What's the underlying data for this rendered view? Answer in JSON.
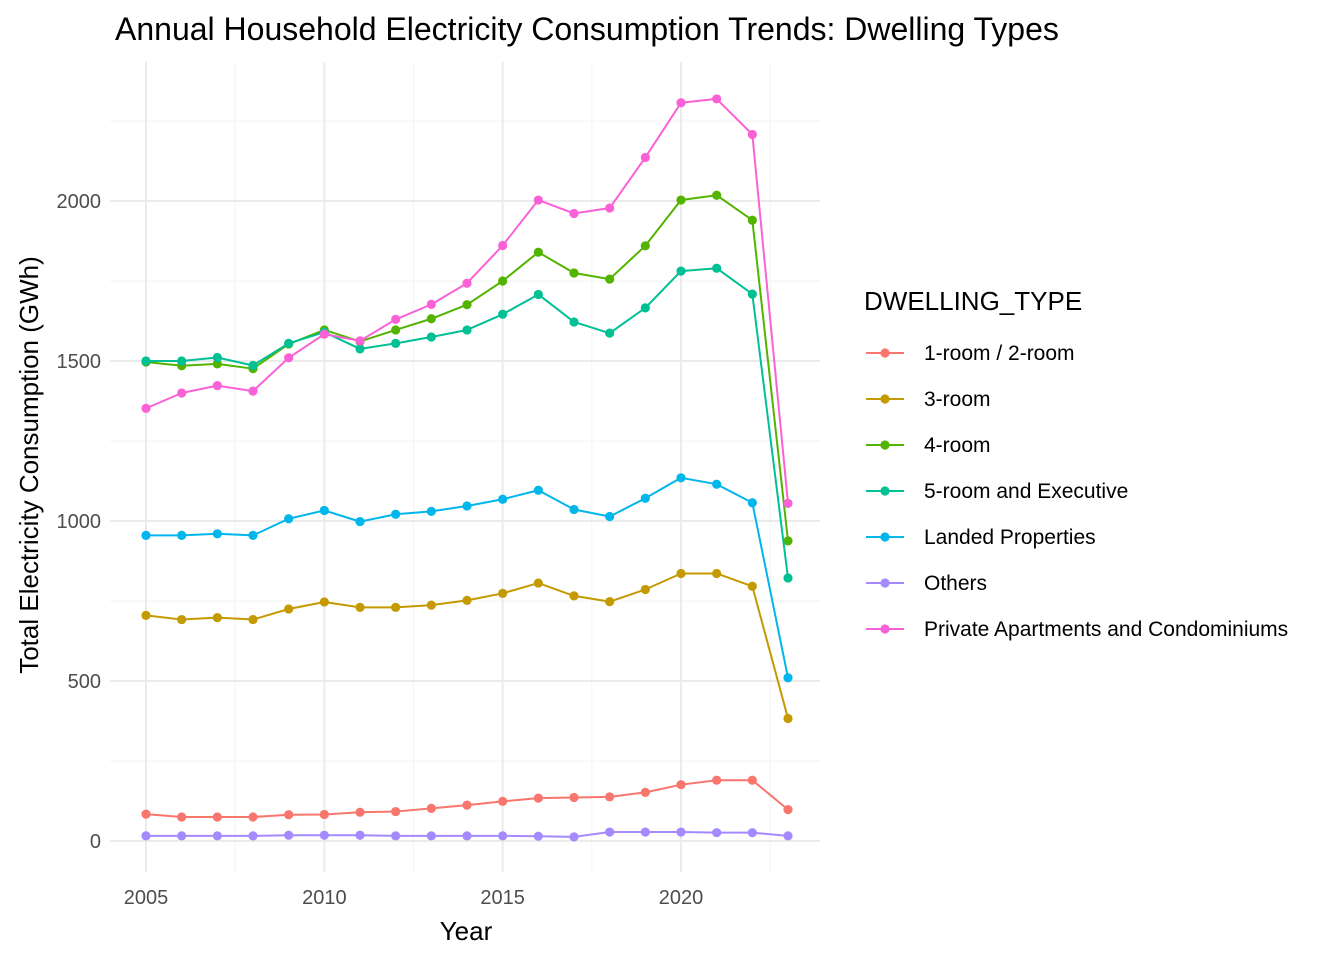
{
  "chart_data": {
    "type": "line",
    "title": "Annual Household Electricity Consumption Trends: Dwelling Types",
    "xlabel": "Year",
    "ylabel": "Total Electricity Consumption (GWh)",
    "legend_title": "DWELLING_TYPE",
    "legend_position": "right",
    "grid": true,
    "xlim": [
      2004.3,
      2023.5
    ],
    "ylim": [
      -100,
      2400
    ],
    "x_ticks": [
      2005,
      2010,
      2015,
      2020
    ],
    "y_ticks": [
      0,
      500,
      1000,
      1500,
      2000
    ],
    "x": [
      2005,
      2006,
      2007,
      2008,
      2009,
      2010,
      2011,
      2012,
      2013,
      2014,
      2015,
      2016,
      2017,
      2018,
      2019,
      2020,
      2021,
      2022,
      2023
    ],
    "series": [
      {
        "name": "1-room / 2-room",
        "color": "#F8766D",
        "values": [
          84,
          75,
          75,
          75,
          82,
          83,
          90,
          92,
          102,
          112,
          124,
          134,
          136,
          138,
          152,
          176,
          190,
          190,
          98
        ]
      },
      {
        "name": "3-room",
        "color": "#C49A00",
        "values": [
          705,
          692,
          698,
          692,
          725,
          747,
          730,
          730,
          737,
          752,
          774,
          806,
          766,
          748,
          786,
          836,
          836,
          796,
          383
        ]
      },
      {
        "name": "4-room",
        "color": "#53B400",
        "values": [
          1497,
          1485,
          1491,
          1476,
          1553,
          1597,
          1561,
          1597,
          1632,
          1676,
          1750,
          1840,
          1775,
          1756,
          1860,
          2003,
          2018,
          1940,
          938
        ]
      },
      {
        "name": "5-room and Executive",
        "color": "#00C094",
        "values": [
          1500,
          1500,
          1511,
          1486,
          1555,
          1590,
          1538,
          1555,
          1575,
          1597,
          1646,
          1708,
          1622,
          1587,
          1666,
          1781,
          1790,
          1709,
          822
        ]
      },
      {
        "name": "Landed Properties",
        "color": "#00B6EB",
        "values": [
          955,
          955,
          960,
          955,
          1007,
          1033,
          998,
          1021,
          1030,
          1047,
          1068,
          1096,
          1036,
          1014,
          1071,
          1135,
          1115,
          1057,
          510
        ]
      },
      {
        "name": "Others",
        "color": "#A58AFF",
        "values": [
          16,
          16,
          16,
          16,
          18,
          18,
          18,
          16,
          16,
          16,
          16,
          15,
          13,
          28,
          28,
          28,
          26,
          26,
          16
        ]
      },
      {
        "name": "Private Apartments and Condominiums",
        "color": "#FB61D7",
        "values": [
          1352,
          1400,
          1423,
          1406,
          1510,
          1584,
          1563,
          1630,
          1677,
          1743,
          1861,
          2003,
          1961,
          1978,
          2136,
          2307,
          2319,
          2208,
          1055
        ]
      }
    ]
  }
}
